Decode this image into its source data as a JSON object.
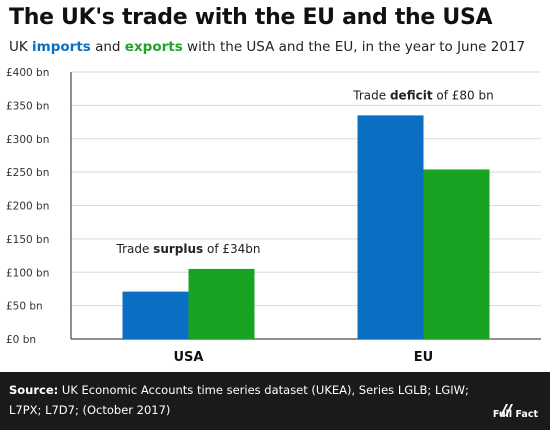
{
  "title_text": "The UK's trade with the EU and the USA",
  "subtitle": {
    "prefix": "UK ",
    "imports_word": "imports",
    "middle": " and ",
    "exports_word": "exports",
    "suffix": " with the USA and the EU, in the year to June 2017"
  },
  "chart_data": {
    "type": "bar",
    "categories": [
      "USA",
      "EU"
    ],
    "series": [
      {
        "name": "imports",
        "values": [
          71,
          335
        ]
      },
      {
        "name": "exports",
        "values": [
          105,
          254
        ]
      }
    ],
    "ylim": [
      0,
      400
    ],
    "yticks": [
      0,
      50,
      100,
      150,
      200,
      250,
      300,
      350,
      400
    ],
    "ytick_labels": [
      "£0 bn",
      "£50 bn",
      "£100 bn",
      "£150 bn",
      "£200 bn",
      "£250 bn",
      "£300 bn",
      "£350 bn",
      "£400 bn"
    ],
    "grid": true,
    "annotations": [
      {
        "category": "USA",
        "prefix": "Trade ",
        "bold": "surplus",
        "suffix": " of £34bn"
      },
      {
        "category": "EU",
        "prefix": "Trade ",
        "bold": "deficit",
        "suffix": " of £80 bn"
      }
    ]
  },
  "colors": {
    "imports": "#0a6fc2",
    "exports": "#18a323",
    "grid": "#d9d9d9",
    "axis": "#222222",
    "footer_bg": "#1a1a1a"
  },
  "footer": {
    "source_label": "Source:",
    "source_text": " UK Economic Accounts time series dataset (UKEA), Series LGLB; LGIW; L7PX; L7D7; (October 2017)",
    "logo_text": "Full Fact",
    "logo_icon": "full-fact-logo-icon"
  }
}
